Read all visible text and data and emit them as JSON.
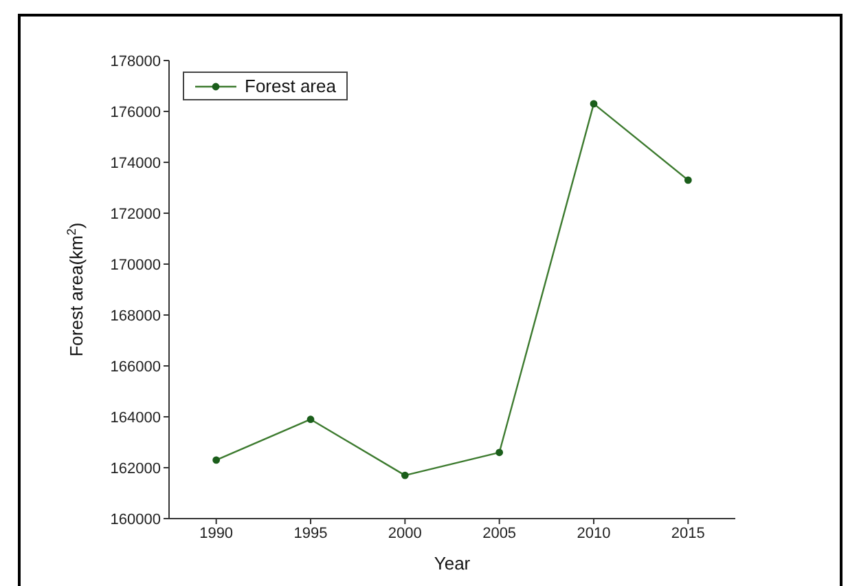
{
  "chart_data": {
    "type": "line",
    "xlabel": "Year",
    "ylabel": "Forest area(km$^{2}$)",
    "x": [
      1990,
      1995,
      2000,
      2005,
      2010,
      2015
    ],
    "series": [
      {
        "name": "Forest area",
        "color": "#3c7a2e",
        "values": [
          162300,
          163900,
          161700,
          162600,
          176300,
          173300
        ]
      }
    ],
    "xlim": [
      1987.5,
      2017.5
    ],
    "xticks": [
      1990,
      1995,
      2000,
      2005,
      2010,
      2015
    ],
    "ylim": [
      160000,
      178000
    ],
    "yticks": [
      160000,
      162000,
      164000,
      166000,
      168000,
      170000,
      172000,
      174000,
      176000,
      178000
    ],
    "grid": false,
    "legend": "top left",
    "marker": "circle",
    "line_style": "solid"
  }
}
